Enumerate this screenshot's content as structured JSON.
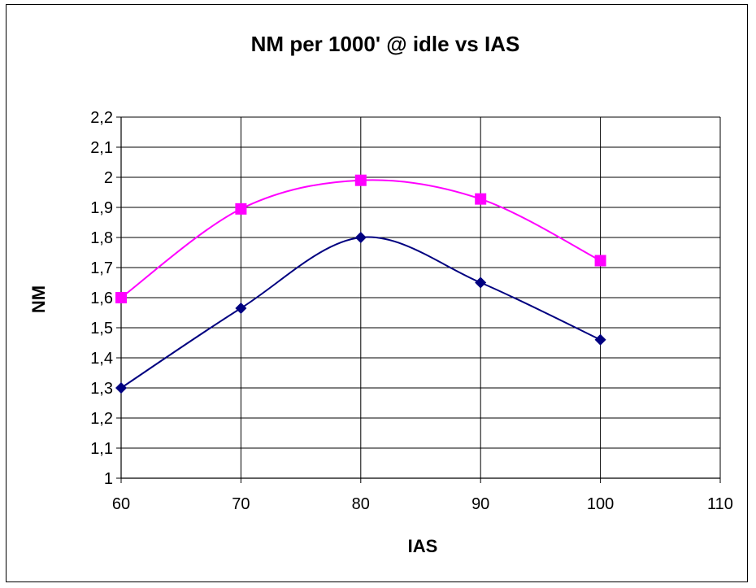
{
  "chart_data": {
    "type": "scatter",
    "title": "NM per 1000' @ idle vs IAS",
    "xlabel": "IAS",
    "ylabel": "NM",
    "xlim": [
      60,
      110
    ],
    "ylim": [
      1,
      2.2
    ],
    "xticks": [
      "60",
      "70",
      "80",
      "90",
      "100",
      "110"
    ],
    "yticks": [
      "1",
      "1,1",
      "1,2",
      "1,3",
      "1,4",
      "1,5",
      "1,6",
      "1,7",
      "1,8",
      "1,9",
      "2",
      "2,1",
      "2,2"
    ],
    "grid": true,
    "legend": "none",
    "smooth_lines": true,
    "series": [
      {
        "color": "#000080",
        "marker": "diamond",
        "x": [
          60,
          70,
          80,
          90,
          100
        ],
        "y": [
          1.3,
          1.565,
          1.8,
          1.65,
          1.46
        ]
      },
      {
        "color": "#ff00ff",
        "marker": "square",
        "x": [
          60,
          70,
          80,
          90,
          100
        ],
        "y": [
          1.6,
          1.895,
          1.99,
          1.928,
          1.723
        ]
      }
    ]
  }
}
